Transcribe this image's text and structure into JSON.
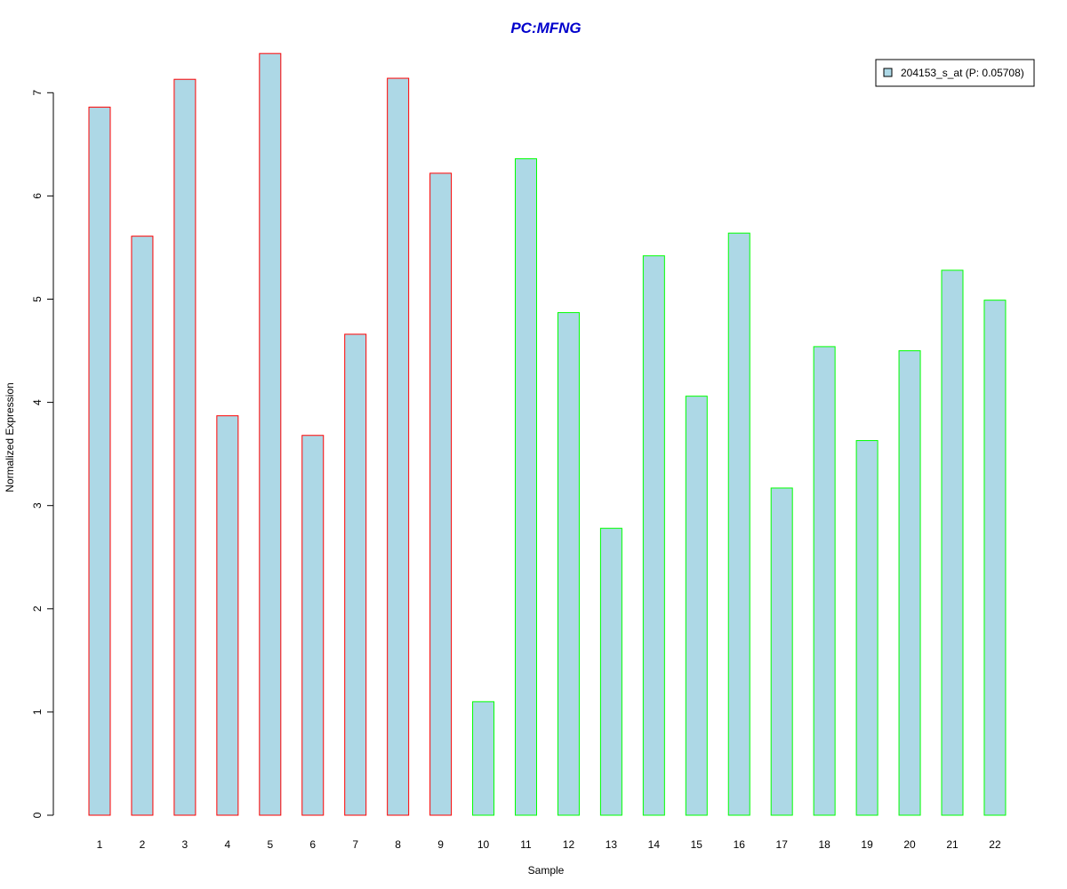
{
  "chart_data": {
    "type": "bar",
    "title": "PC:MFNG",
    "xlabel": "Sample",
    "ylabel": "Normalized Expression",
    "categories": [
      "1",
      "2",
      "3",
      "4",
      "5",
      "6",
      "7",
      "8",
      "9",
      "10",
      "11",
      "12",
      "13",
      "14",
      "15",
      "16",
      "17",
      "18",
      "19",
      "20",
      "21",
      "22"
    ],
    "values": [
      6.86,
      5.61,
      7.13,
      3.87,
      7.38,
      3.68,
      4.66,
      7.14,
      6.22,
      1.1,
      6.36,
      4.87,
      2.78,
      5.42,
      4.06,
      5.64,
      3.17,
      4.54,
      3.63,
      4.5,
      5.28,
      4.99
    ],
    "groups": [
      "red",
      "red",
      "red",
      "red",
      "red",
      "red",
      "red",
      "red",
      "red",
      "green",
      "green",
      "green",
      "green",
      "green",
      "green",
      "green",
      "green",
      "green",
      "green",
      "green",
      "green",
      "green"
    ],
    "yticks": [
      "0",
      "1",
      "2",
      "3",
      "4",
      "5",
      "6",
      "7"
    ],
    "ylim": [
      0,
      7.4
    ],
    "grid": false,
    "legend": {
      "position": "top-right",
      "entries": [
        {
          "label": "204153_s_at (P: 0.05708)",
          "color": "#add8e6"
        }
      ]
    },
    "colors": {
      "fill": "#add8e6",
      "group_red": "#ff0000",
      "group_green": "#00ff00",
      "title": "#0000cc"
    }
  }
}
